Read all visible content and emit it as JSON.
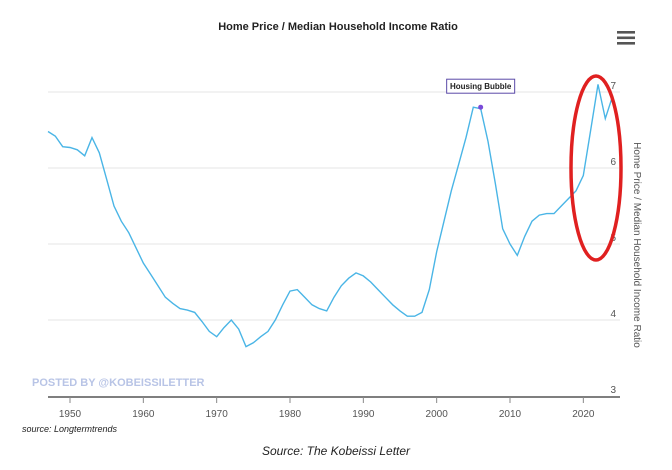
{
  "caption": "Source: The Kobeissi Letter",
  "menu_icon": "hamburger-menu-icon",
  "chart_data": {
    "type": "line",
    "title": "Home Price / Median Household Income Ratio",
    "xlabel": "",
    "ylabel": "Home Price / Median Household Income Ratio",
    "xlim": [
      1947,
      2025
    ],
    "ylim": [
      3,
      7.5
    ],
    "x_ticks": [
      1950,
      1960,
      1970,
      1980,
      1990,
      2000,
      2010,
      2020
    ],
    "y_ticks": [
      3,
      4,
      5,
      6,
      7
    ],
    "y_axis_side": "right",
    "grid": "horizontal",
    "line_color": "#4ab5e6",
    "series": [
      {
        "x": [
          1947,
          1948,
          1949,
          1950,
          1951,
          1952,
          1953,
          1954,
          1955,
          1956,
          1957,
          1958,
          1959,
          1960,
          1961,
          1962,
          1963,
          1964,
          1965,
          1966,
          1967,
          1968,
          1969,
          1970,
          1971,
          1972,
          1973,
          1974,
          1975,
          1976,
          1977,
          1978,
          1979,
          1980,
          1981,
          1982,
          1983,
          1984,
          1985,
          1986,
          1987,
          1988,
          1989,
          1990,
          1991,
          1992,
          1993,
          1994,
          1995,
          1996,
          1997,
          1998,
          1999,
          2000,
          2001,
          2002,
          2003,
          2004,
          2005,
          2006,
          2007,
          2008,
          2009,
          2010,
          2011,
          2012,
          2013,
          2014,
          2015,
          2016,
          2017,
          2018,
          2019,
          2020,
          2021,
          2022,
          2023,
          2024
        ],
        "y": [
          6.48,
          6.42,
          6.28,
          6.27,
          6.24,
          6.16,
          6.4,
          6.2,
          5.85,
          5.5,
          5.3,
          5.15,
          4.95,
          4.75,
          4.6,
          4.45,
          4.3,
          4.22,
          4.15,
          4.13,
          4.1,
          3.98,
          3.85,
          3.78,
          3.9,
          4.0,
          3.88,
          3.65,
          3.7,
          3.78,
          3.85,
          4.0,
          4.2,
          4.38,
          4.4,
          4.3,
          4.2,
          4.15,
          4.12,
          4.3,
          4.45,
          4.55,
          4.62,
          4.58,
          4.5,
          4.4,
          4.3,
          4.2,
          4.12,
          4.05,
          4.05,
          4.1,
          4.4,
          4.9,
          5.3,
          5.7,
          6.05,
          6.4,
          6.8,
          6.78,
          6.35,
          5.8,
          5.2,
          5.0,
          4.85,
          5.1,
          5.3,
          5.38,
          5.4,
          5.4,
          5.5,
          5.6,
          5.7,
          5.9,
          6.5,
          7.1,
          6.65,
          6.95
        ]
      }
    ],
    "annotations": [
      {
        "text": "Housing Bubble",
        "x": 2006,
        "y": 6.8
      }
    ],
    "watermark": "POSTED BY @KOBEISSILETTER",
    "source": "source: Longtermtrends",
    "highlight": "red ellipse around 2020–2024 peak"
  }
}
